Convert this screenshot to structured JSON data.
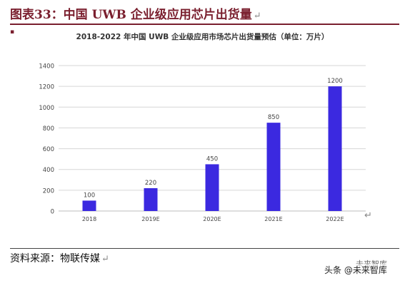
{
  "figure": {
    "title": "图表33：中国 UWB 企业级应用芯片出货量",
    "return_mark": "↵",
    "source": "资料来源：物联传媒",
    "source_return_mark": "↵",
    "chart_return_mark": "↵"
  },
  "watermark": {
    "text": "头条 @未来智库",
    "top_text": "未来智库"
  },
  "colors": {
    "bar": "#3b29e0",
    "title": "#7a1f2e",
    "grid": "#d6d6d6",
    "axis_text": "#444444"
  },
  "chart_data": {
    "type": "bar",
    "title": "2018-2022 年中国 UWB 企业级应用市场芯片出货量预估（单位：万片）",
    "xlabel": "",
    "ylabel": "",
    "categories": [
      "2018",
      "2019E",
      "2020E",
      "2021E",
      "2022E"
    ],
    "values": [
      100,
      220,
      450,
      850,
      1200
    ],
    "data_labels": [
      "100",
      "220",
      "450",
      "850",
      "1200"
    ],
    "ylim": [
      0,
      1400
    ],
    "yticks": [
      0,
      200,
      400,
      600,
      800,
      1000,
      1200,
      1400
    ],
    "grid": true,
    "legend": "none"
  }
}
